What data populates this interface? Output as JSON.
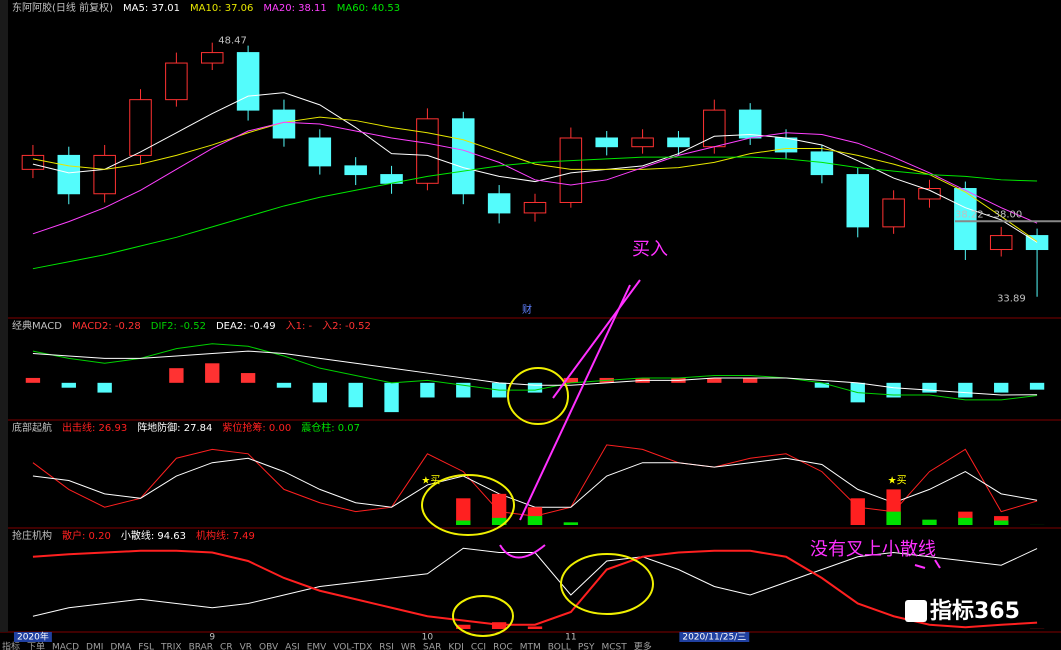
{
  "chart_data": [
    {
      "type": "candlestick",
      "title": "东阿阿胶(日线 前复权)",
      "open": [
        41.2,
        42.0,
        39.8,
        42.0,
        45.2,
        47.3,
        47.9,
        44.6,
        43.0,
        41.4,
        40.9,
        40.4,
        44.1,
        39.8,
        38.7,
        39.3,
        43.0,
        42.5,
        43.0,
        42.5,
        44.6,
        43.0,
        42.2,
        40.9,
        37.9,
        39.5,
        40.1,
        36.6,
        37.4
      ],
      "high": [
        42.6,
        42.5,
        42.6,
        45.8,
        47.9,
        48.47,
        48.3,
        45.2,
        43.5,
        41.9,
        41.4,
        44.7,
        44.5,
        40.3,
        39.8,
        43.6,
        43.4,
        43.5,
        43.4,
        45.2,
        45.0,
        43.5,
        42.6,
        41.3,
        40.0,
        40.6,
        40.5,
        37.9,
        37.8
      ],
      "low": [
        40.7,
        39.2,
        39.3,
        41.5,
        44.8,
        46.9,
        44.0,
        42.5,
        40.9,
        40.3,
        39.8,
        40.0,
        39.2,
        38.1,
        38.2,
        39.0,
        42.0,
        42.1,
        42.0,
        42.1,
        42.6,
        41.8,
        40.4,
        37.3,
        37.5,
        39.0,
        36.0,
        36.2,
        33.89
      ],
      "close": [
        42.0,
        39.8,
        42.0,
        45.2,
        47.3,
        47.9,
        44.6,
        43.0,
        41.4,
        40.9,
        40.4,
        44.1,
        39.8,
        38.7,
        39.3,
        43.0,
        42.5,
        43.0,
        42.5,
        44.6,
        43.0,
        42.2,
        40.9,
        37.9,
        39.5,
        40.1,
        36.6,
        37.4,
        36.6
      ],
      "up_color": "#ff3232",
      "down_color": "#54fcfc",
      "ylim": [
        32.9,
        50
      ],
      "series": [
        {
          "name": "MA5: 37.01",
          "color": "#ffffff",
          "values": [
            41.5,
            41.0,
            41.2,
            42.2,
            43.3,
            44.4,
            45.4,
            45.6,
            44.9,
            43.6,
            42.1,
            42.0,
            41.3,
            40.8,
            40.5,
            41.0,
            41.2,
            41.4,
            42.1,
            43.1,
            43.2,
            43.0,
            42.6,
            41.7,
            40.7,
            40.0,
            39.0,
            38.3,
            37.01
          ]
        },
        {
          "name": "MA10: 37.06",
          "color": "#e6e600",
          "values": [
            41.8,
            41.4,
            41.2,
            41.5,
            42.0,
            42.6,
            43.3,
            43.9,
            44.2,
            44.0,
            43.6,
            43.3,
            42.9,
            42.2,
            41.5,
            41.2,
            41.2,
            41.2,
            41.3,
            41.6,
            42.1,
            42.4,
            42.4,
            42.0,
            41.5,
            40.9,
            39.9,
            38.5,
            37.06
          ]
        },
        {
          "name": "MA20: 38.11",
          "color": "#ff40ff",
          "values": [
            37.5,
            38.2,
            39.0,
            40.0,
            41.2,
            42.4,
            43.4,
            43.9,
            43.8,
            43.4,
            43.0,
            42.7,
            42.3,
            41.6,
            40.6,
            40.3,
            40.6,
            41.3,
            42.0,
            42.5,
            43.0,
            43.3,
            43.2,
            42.7,
            41.9,
            41.0,
            40.0,
            39.0,
            38.11
          ]
        },
        {
          "name": "MA60: 40.53",
          "color": "#00e600",
          "values": [
            35.5,
            35.9,
            36.3,
            36.8,
            37.3,
            37.9,
            38.5,
            39.1,
            39.6,
            40.0,
            40.4,
            40.8,
            41.1,
            41.4,
            41.6,
            41.7,
            41.8,
            41.9,
            41.9,
            41.9,
            41.9,
            41.8,
            41.6,
            41.3,
            41.1,
            40.9,
            40.8,
            40.6,
            40.53
          ]
        }
      ],
      "max_label": "48.47",
      "min_label": "33.89",
      "ref_line": {
        "value": 38.22,
        "label": "38.22 - 38.00"
      },
      "event_label": "财"
    },
    {
      "type": "indicator",
      "title": "经典MACD",
      "ylim": [
        -1.4,
        2.0
      ],
      "series": [
        {
          "name": "MACD2: -0.28",
          "kind": "bar",
          "color": "#ff3232",
          "neg_color": "#54fcfc",
          "values": [
            0.2,
            -0.2,
            -0.4,
            0,
            0.6,
            0.8,
            0.4,
            -0.2,
            -0.8,
            -1.0,
            -1.2,
            -0.6,
            -0.6,
            -0.6,
            -0.4,
            0.2,
            0.2,
            0.2,
            0.2,
            0.2,
            0.2,
            0,
            -0.2,
            -0.8,
            -0.6,
            -0.4,
            -0.6,
            -0.4,
            -0.28
          ]
        },
        {
          "name": "DIF2: -0.52",
          "kind": "line",
          "color": "#00d000",
          "values": [
            1.3,
            1.0,
            0.8,
            1.0,
            1.4,
            1.6,
            1.5,
            1.1,
            0.6,
            0.3,
            0,
            0.1,
            -0.1,
            -0.3,
            -0.3,
            0,
            0.1,
            0.2,
            0.2,
            0.3,
            0.3,
            0.2,
            0,
            -0.4,
            -0.5,
            -0.5,
            -0.7,
            -0.7,
            -0.52
          ]
        },
        {
          "name": "DEA2: -0.49",
          "kind": "line",
          "color": "#ffffff",
          "values": [
            1.2,
            1.1,
            1.0,
            1.0,
            1.1,
            1.2,
            1.3,
            1.2,
            1.0,
            0.8,
            0.6,
            0.4,
            0.2,
            0,
            -0.1,
            -0.1,
            0,
            0.1,
            0.1,
            0.2,
            0.2,
            0.2,
            0.1,
            0,
            -0.2,
            -0.3,
            -0.4,
            -0.5,
            -0.49
          ]
        }
      ],
      "legend_extra": [
        "入1: -",
        "入2: -0.52"
      ]
    },
    {
      "type": "indicator",
      "title": "底部起航",
      "ylim": [
        0,
        100
      ],
      "series": [
        {
          "name": "出击线: 26.93",
          "kind": "line",
          "color": "#ff2020",
          "values": [
            70,
            40,
            20,
            30,
            75,
            85,
            80,
            40,
            25,
            15,
            20,
            80,
            60,
            15,
            10,
            20,
            90,
            85,
            70,
            65,
            75,
            80,
            60,
            20,
            15,
            60,
            85,
            15,
            26.93
          ]
        },
        {
          "name": "阵地防御: 27.84",
          "kind": "line",
          "color": "#ffffff",
          "values": [
            55,
            50,
            35,
            30,
            55,
            70,
            75,
            60,
            40,
            25,
            20,
            45,
            55,
            35,
            20,
            20,
            55,
            70,
            70,
            65,
            70,
            75,
            68,
            40,
            25,
            40,
            60,
            35,
            27.84
          ]
        },
        {
          "name": "紫位抢筹: 0.00",
          "kind": "bar",
          "color": "#ff2020",
          "values": [
            0,
            0,
            0,
            0,
            0,
            0,
            0,
            0,
            0,
            0,
            0,
            0,
            30,
            35,
            20,
            0,
            0,
            0,
            0,
            0,
            0,
            0,
            0,
            30,
            40,
            0,
            15,
            10,
            0
          ]
        },
        {
          "name": "震仓柱: 0.07",
          "kind": "bar",
          "color": "#00e000",
          "values": [
            0,
            0,
            0,
            0,
            0,
            0,
            0,
            0,
            0,
            0,
            0,
            0,
            5,
            8,
            10,
            3,
            0,
            0,
            0,
            0,
            0,
            0,
            0,
            0,
            15,
            6,
            8,
            5,
            0.07
          ]
        }
      ],
      "markers": {
        "label": "★买",
        "color": "#ffff00",
        "values": [
          null,
          null,
          null,
          null,
          null,
          null,
          null,
          null,
          null,
          null,
          null,
          50,
          null,
          null,
          null,
          null,
          null,
          null,
          null,
          null,
          null,
          null,
          null,
          null,
          50,
          null,
          null,
          null,
          null
        ]
      }
    },
    {
      "type": "indicator",
      "title": "抢庄机构",
      "ylim": [
        0,
        100
      ],
      "series": [
        {
          "name": "散户: 0.20",
          "kind": "bar",
          "color": "#ff2020",
          "values": [
            null,
            null,
            null,
            null,
            null,
            null,
            null,
            null,
            null,
            null,
            null,
            null,
            5,
            8,
            3,
            null,
            null,
            null,
            null,
            null,
            null,
            null,
            null,
            null,
            null,
            null,
            null,
            null,
            0.2
          ]
        },
        {
          "name": "小散线: 94.63",
          "kind": "line",
          "color": "#ffffff",
          "values": [
            15,
            25,
            30,
            35,
            30,
            25,
            30,
            40,
            50,
            55,
            60,
            65,
            95,
            90,
            90,
            40,
            80,
            85,
            70,
            50,
            40,
            55,
            70,
            85,
            90,
            85,
            80,
            75,
            94.63
          ]
        },
        {
          "name": "机构线: 7.49",
          "kind": "line",
          "color": "#ff2020",
          "width": 2,
          "values": [
            85,
            88,
            90,
            92,
            92,
            90,
            80,
            60,
            45,
            35,
            25,
            15,
            10,
            5,
            5,
            20,
            70,
            85,
            90,
            92,
            92,
            85,
            60,
            30,
            15,
            5,
            2,
            5,
            7.49
          ]
        }
      ],
      "categories": [
        "2020年",
        null,
        null,
        null,
        null,
        "9",
        null,
        null,
        null,
        null,
        null,
        "10",
        null,
        null,
        null,
        "11",
        null,
        null,
        null,
        "2020/11/25/三",
        null,
        null,
        null,
        null,
        null,
        null,
        null,
        null,
        null
      ]
    }
  ],
  "annotations": {
    "buy": "买入",
    "note": "没有叉上小散线"
  },
  "watermark": "指标365",
  "tabs": [
    "指标",
    "下单",
    "MACD",
    "DMI",
    "DMA",
    "FSL",
    "TRIX",
    "BRAR",
    "CR",
    "VR",
    "OBV",
    "ASI",
    "EMV",
    "VOL-TDX",
    "RSI",
    "WR",
    "SAR",
    "KDJ",
    "CCI",
    "ROC",
    "MTM",
    "BOLL",
    "PSY",
    "MCST",
    "更多"
  ]
}
